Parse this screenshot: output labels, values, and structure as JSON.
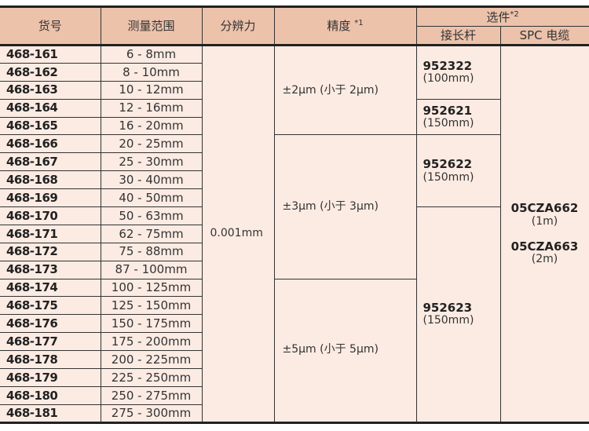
{
  "header": {
    "model": "货号",
    "range": "测量范围",
    "resolution": "分辨力",
    "accuracy": "精度",
    "accuracy_note": "*1",
    "options": "选件",
    "options_note": "*2",
    "extension_rod": "接长杆",
    "spc_cable": "SPC 电缆"
  },
  "rows": [
    {
      "model": "468-161",
      "range": "6 - 8mm"
    },
    {
      "model": "468-162",
      "range": "8 - 10mm"
    },
    {
      "model": "468-163",
      "range": "10 - 12mm"
    },
    {
      "model": "468-164",
      "range": "12 - 16mm"
    },
    {
      "model": "468-165",
      "range": "16 - 20mm"
    },
    {
      "model": "468-166",
      "range": "20 - 25mm"
    },
    {
      "model": "468-167",
      "range": "25 - 30mm"
    },
    {
      "model": "468-168",
      "range": "30 - 40mm"
    },
    {
      "model": "468-169",
      "range": "40 - 50mm"
    },
    {
      "model": "468-170",
      "range": "50 - 63mm"
    },
    {
      "model": "468-171",
      "range": "62 - 75mm"
    },
    {
      "model": "468-172",
      "range": "75 - 88mm"
    },
    {
      "model": "468-173",
      "range": "87 - 100mm"
    },
    {
      "model": "468-174",
      "range": "100 - 125mm"
    },
    {
      "model": "468-175",
      "range": "125 - 150mm"
    },
    {
      "model": "468-176",
      "range": "150 - 175mm"
    },
    {
      "model": "468-177",
      "range": "175 - 200mm"
    },
    {
      "model": "468-178",
      "range": "200 - 225mm"
    },
    {
      "model": "468-179",
      "range": "225 - 250mm"
    },
    {
      "model": "468-180",
      "range": "250 - 275mm"
    },
    {
      "model": "468-181",
      "range": "275 - 300mm"
    }
  ],
  "resolution": "0.001mm",
  "accuracy": [
    "±2μm (小于 2μm)",
    "±3μm (小于 3μm)",
    "±5μm (小于 5μm)"
  ],
  "extension": [
    {
      "code": "952322",
      "length": "(100mm)"
    },
    {
      "code": "952621",
      "length": "(150mm)"
    },
    {
      "code": "952622",
      "length": "(150mm)"
    },
    {
      "code": "952623",
      "length": "(150mm)"
    }
  ],
  "spc": [
    {
      "code": "05CZA662",
      "length": "(1m)"
    },
    {
      "code": "05CZA663",
      "length": "(2m)"
    }
  ]
}
